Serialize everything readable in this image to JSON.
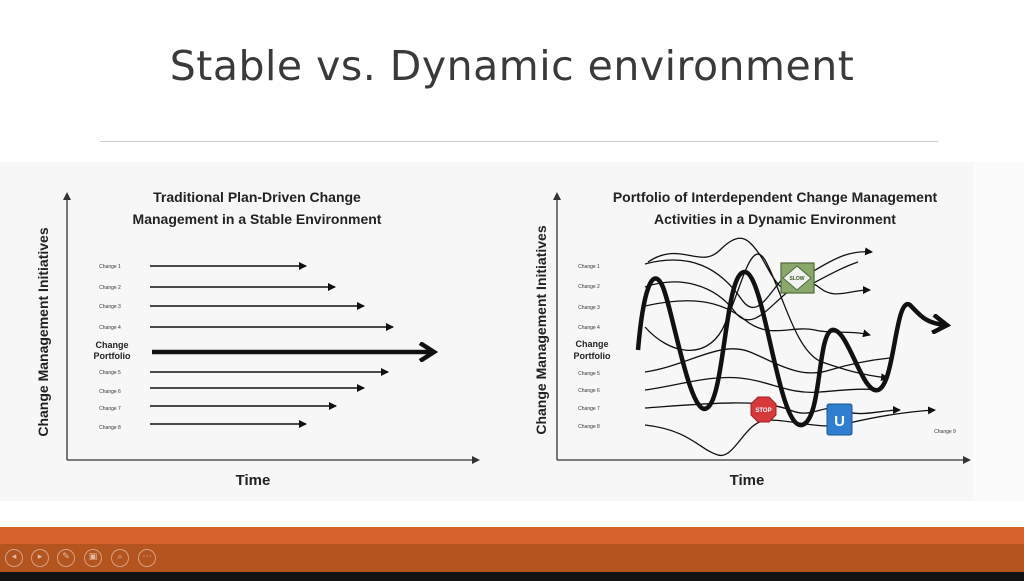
{
  "slide": {
    "title": "Stable vs. Dynamic environment"
  },
  "left_diagram": {
    "title_line1": "Traditional Plan-Driven Change",
    "title_line2": "Management in a Stable Environment",
    "y_axis_label": "Change Management Initiatives",
    "x_axis_label": "Time",
    "rows_above": [
      "Change 1",
      "Change 2",
      "Change 3",
      "Change 4"
    ],
    "portfolio_line1": "Change",
    "portfolio_line2": "Portfolio",
    "rows_below": [
      "Change 5",
      "Change 6",
      "Change 7",
      "Change 8"
    ]
  },
  "right_diagram": {
    "title_line1": "Portfolio of Interdependent Change Management",
    "title_line2": "Activities in a Dynamic Environment",
    "y_axis_label": "Change Management Initiatives",
    "x_axis_label": "Time",
    "rows_above": [
      "Change 1",
      "Change 2",
      "Change 3",
      "Change 4"
    ],
    "portfolio_line1": "Change",
    "portfolio_line2": "Portfolio",
    "rows_below": [
      "Change 5",
      "Change 6",
      "Change 7",
      "Change 8"
    ],
    "end_label": "Change 9",
    "sign_slow": "SLOW",
    "sign_stop": "STOP",
    "sign_uturn": "U"
  },
  "player_controls": {
    "icons": [
      "previous-icon",
      "next-icon",
      "pen-icon",
      "slides-icon",
      "zoom-icon",
      "more-icon"
    ],
    "glyphs": [
      "◂",
      "▸",
      "✎",
      "▣",
      "⌕",
      "⋯"
    ]
  }
}
